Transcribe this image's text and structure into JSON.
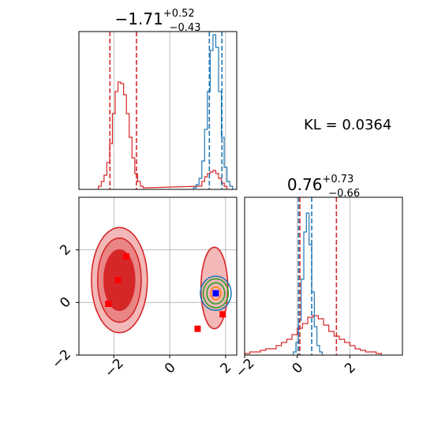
{
  "chart_data": [
    {
      "panel": "marginal-param-1",
      "type": "histogram",
      "title": {
        "median": "−1.71",
        "plus": "+0.52",
        "minus": "−0.43"
      },
      "xlim": [
        -3.25,
        2.4
      ],
      "grid": true,
      "series": [
        {
          "color": "#d62728",
          "bins_center": [
            -2.5,
            -2.4,
            -2.3,
            -2.2,
            -2.1,
            -2.0,
            -1.9,
            -1.8,
            -1.7,
            -1.6,
            -1.5,
            -1.4,
            -1.3,
            -1.2,
            -1.1,
            -1.0,
            -0.9,
            1.1,
            1.2,
            1.3,
            1.4,
            1.5,
            1.6,
            1.7,
            1.8,
            1.9,
            2.0
          ],
          "heights": [
            0.02,
            0.05,
            0.09,
            0.17,
            0.29,
            0.48,
            0.62,
            0.68,
            0.67,
            0.6,
            0.48,
            0.33,
            0.2,
            0.1,
            0.05,
            0.02,
            0.01,
            0.02,
            0.05,
            0.08,
            0.1,
            0.11,
            0.12,
            0.1,
            0.07,
            0.04,
            0.02
          ]
        },
        {
          "color": "#1f77b4",
          "bins_center": [
            0.9,
            1.0,
            1.1,
            1.2,
            1.3,
            1.4,
            1.5,
            1.6,
            1.7,
            1.8,
            1.9,
            2.0,
            2.1,
            2.2
          ],
          "heights": [
            0.01,
            0.03,
            0.07,
            0.18,
            0.38,
            0.62,
            0.88,
            0.98,
            0.9,
            0.62,
            0.33,
            0.14,
            0.05,
            0.02
          ]
        }
      ],
      "quantile_lines": [
        {
          "x": -2.14,
          "color": "#d62728"
        },
        {
          "x": -1.19,
          "color": "#d62728"
        },
        {
          "x": 1.42,
          "color": "#1f77b4"
        },
        {
          "x": 1.87,
          "color": "#1f77b4"
        }
      ]
    },
    {
      "panel": "marginal-param-2",
      "type": "histogram",
      "title": {
        "median": "0.76",
        "plus": "+0.73",
        "minus": "−0.66"
      },
      "xlim": [
        -2,
        4
      ],
      "xticks": [
        -2,
        0,
        2
      ],
      "grid": true,
      "series": [
        {
          "color": "#d62728",
          "bins_center": [
            -1.9,
            -1.7,
            -1.5,
            -1.3,
            -1.1,
            -0.9,
            -0.7,
            -0.5,
            -0.3,
            -0.1,
            0.1,
            0.3,
            0.5,
            0.7,
            0.9,
            1.1,
            1.3,
            1.5,
            1.7,
            1.9,
            2.1,
            2.3,
            2.5,
            2.7,
            2.9,
            3.1
          ],
          "heights": [
            0.01,
            0.02,
            0.02,
            0.03,
            0.04,
            0.04,
            0.06,
            0.08,
            0.1,
            0.13,
            0.17,
            0.2,
            0.24,
            0.25,
            0.23,
            0.19,
            0.15,
            0.12,
            0.1,
            0.08,
            0.06,
            0.04,
            0.03,
            0.02,
            0.02,
            0.01
          ]
        },
        {
          "color": "#1f77b4",
          "bins_center": [
            -0.1,
            0.0,
            0.1,
            0.2,
            0.3,
            0.4,
            0.5,
            0.6,
            0.7,
            0.8,
            0.9
          ],
          "heights": [
            0.02,
            0.08,
            0.22,
            0.48,
            0.78,
            0.9,
            0.7,
            0.4,
            0.18,
            0.06,
            0.02
          ]
        }
      ],
      "quantile_lines": [
        {
          "x": 0.1,
          "color": "#d62728"
        },
        {
          "x": 1.49,
          "color": "#d62728"
        },
        {
          "x": 0.05,
          "color": "#1f77b4"
        },
        {
          "x": 0.55,
          "color": "#1f77b4"
        }
      ]
    },
    {
      "panel": "joint-param-1-vs-param-2",
      "type": "contour-scatter",
      "xlim": [
        -3.25,
        2.4
      ],
      "ylim": [
        -2,
        4
      ],
      "xticks": [
        -2,
        0,
        2
      ],
      "yticks": [
        -2,
        0,
        2
      ],
      "grid": true,
      "contours": [
        {
          "color": "#d62728",
          "fill": "#f3b8b8",
          "center": [
            -1.8,
            0.85
          ],
          "rx": 1.0,
          "ry": 2.0
        },
        {
          "color": "#d62728",
          "fill": "#e98585",
          "center": [
            -1.8,
            0.85
          ],
          "rx": 0.78,
          "ry": 1.6
        },
        {
          "color": "#d62728",
          "fill": "#d62728",
          "center": [
            -1.8,
            0.85
          ],
          "rx": 0.55,
          "ry": 1.15
        },
        {
          "color": "#d62728",
          "fill": "#f3b8b8",
          "center": [
            1.6,
            0.55
          ],
          "rx": 0.48,
          "ry": 1.55
        },
        {
          "color": "#1f77b4",
          "fill": "none",
          "center": [
            1.65,
            0.35
          ],
          "rx": 0.55,
          "ry": 0.65
        },
        {
          "color": "#2ca02c",
          "fill": "none",
          "center": [
            1.65,
            0.35
          ],
          "rx": 0.45,
          "ry": 0.55
        },
        {
          "color": "#2ca02c",
          "fill": "none",
          "center": [
            1.65,
            0.35
          ],
          "rx": 0.32,
          "ry": 0.4
        },
        {
          "color": "#ff7f0e",
          "fill": "none",
          "center": [
            1.65,
            0.35
          ],
          "rx": 0.18,
          "ry": 0.24
        }
      ],
      "markers": [
        {
          "x": -1.55,
          "y": 1.75,
          "color": "#ff0000"
        },
        {
          "x": -1.85,
          "y": 0.85,
          "color": "#ff0000"
        },
        {
          "x": -2.2,
          "y": -0.05,
          "color": "#ff0000"
        },
        {
          "x": 1.0,
          "y": -1.0,
          "color": "#ff0000"
        },
        {
          "x": 1.9,
          "y": -0.45,
          "color": "#ff0000"
        },
        {
          "x": 1.65,
          "y": 0.35,
          "color": "#0000ff"
        }
      ]
    }
  ],
  "annotation": "KL = 0.0364"
}
